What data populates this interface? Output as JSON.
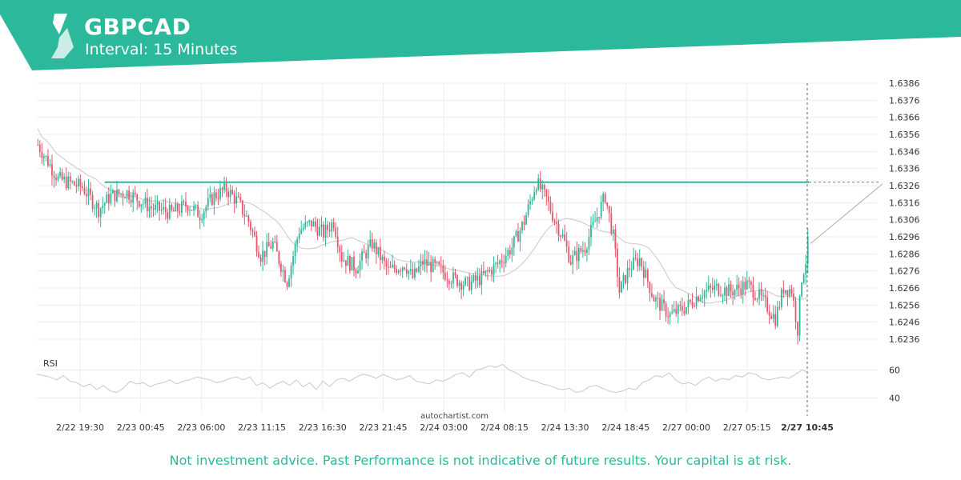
{
  "header": {
    "symbol": "GBPCAD",
    "interval": "Interval: 15 Minutes",
    "color": "#2cb99b"
  },
  "chart_data": {
    "type": "candlestick",
    "symbol": "GBPCAD",
    "y_ticks": [
      "1.6386",
      "1.6376",
      "1.6366",
      "1.6356",
      "1.6346",
      "1.6336",
      "1.6326",
      "1.6316",
      "1.6306",
      "1.6296",
      "1.6286",
      "1.6276",
      "1.6266",
      "1.6256",
      "1.6246",
      "1.6236"
    ],
    "ylim": [
      1.6232,
      1.6389
    ],
    "x_ticks": [
      "2/22 19:30",
      "2/23 00:45",
      "2/23 06:00",
      "2/23 11:15",
      "2/23 16:30",
      "2/23 21:45",
      "2/24 03:00",
      "2/24 08:15",
      "2/24 13:30",
      "2/24 18:45",
      "2/27 00:00",
      "2/27 05:15"
    ],
    "current_time_label": "2/27 10:45",
    "resistance_level": 1.6328,
    "projection": {
      "from": 1.6292,
      "to": 1.6327
    },
    "grid": true,
    "bullish_color": "#2cb99b",
    "bearish_color": "#e8566c",
    "price_path": [
      {
        "t": 0,
        "p": 1.635
      },
      {
        "t": 10,
        "p": 1.633
      },
      {
        "t": 22,
        "p": 1.6325
      },
      {
        "t": 30,
        "p": 1.6312
      },
      {
        "t": 36,
        "p": 1.632
      },
      {
        "t": 44,
        "p": 1.6322
      },
      {
        "t": 56,
        "p": 1.6313
      },
      {
        "t": 66,
        "p": 1.631
      },
      {
        "t": 74,
        "p": 1.6315
      },
      {
        "t": 80,
        "p": 1.6309
      },
      {
        "t": 87,
        "p": 1.632
      },
      {
        "t": 93,
        "p": 1.6324
      },
      {
        "t": 99,
        "p": 1.6316
      },
      {
        "t": 104,
        "p": 1.6305
      },
      {
        "t": 110,
        "p": 1.6285
      },
      {
        "t": 116,
        "p": 1.6292
      },
      {
        "t": 123,
        "p": 1.627
      },
      {
        "t": 129,
        "p": 1.63
      },
      {
        "t": 135,
        "p": 1.6304
      },
      {
        "t": 141,
        "p": 1.6298
      },
      {
        "t": 146,
        "p": 1.6305
      },
      {
        "t": 150,
        "p": 1.6284
      },
      {
        "t": 157,
        "p": 1.6278
      },
      {
        "t": 165,
        "p": 1.6292
      },
      {
        "t": 173,
        "p": 1.6276
      },
      {
        "t": 181,
        "p": 1.628
      },
      {
        "t": 185,
        "p": 1.6272
      },
      {
        "t": 190,
        "p": 1.6281
      },
      {
        "t": 198,
        "p": 1.6277
      },
      {
        "t": 204,
        "p": 1.6272
      },
      {
        "t": 212,
        "p": 1.6268
      },
      {
        "t": 219,
        "p": 1.6272
      },
      {
        "t": 227,
        "p": 1.628
      },
      {
        "t": 234,
        "p": 1.629
      },
      {
        "t": 240,
        "p": 1.6305
      },
      {
        "t": 246,
        "p": 1.6328
      },
      {
        "t": 251,
        "p": 1.6318
      },
      {
        "t": 255,
        "p": 1.6306
      },
      {
        "t": 259,
        "p": 1.6296
      },
      {
        "t": 263,
        "p": 1.6282
      },
      {
        "t": 270,
        "p": 1.629
      },
      {
        "t": 275,
        "p": 1.6305
      },
      {
        "t": 280,
        "p": 1.632
      },
      {
        "t": 284,
        "p": 1.6296
      },
      {
        "t": 287,
        "p": 1.6264
      },
      {
        "t": 292,
        "p": 1.6278
      },
      {
        "t": 297,
        "p": 1.6283
      },
      {
        "t": 304,
        "p": 1.626
      },
      {
        "t": 312,
        "p": 1.625
      },
      {
        "t": 320,
        "p": 1.6255
      },
      {
        "t": 327,
        "p": 1.6263
      },
      {
        "t": 335,
        "p": 1.6266
      },
      {
        "t": 342,
        "p": 1.6264
      },
      {
        "t": 350,
        "p": 1.6268
      },
      {
        "t": 356,
        "p": 1.6261
      },
      {
        "t": 360,
        "p": 1.6255
      },
      {
        "t": 364,
        "p": 1.6248
      },
      {
        "t": 368,
        "p": 1.6266
      },
      {
        "t": 372,
        "p": 1.6265
      },
      {
        "t": 375,
        "p": 1.6242
      },
      {
        "t": 377,
        "p": 1.6272
      },
      {
        "t": 379,
        "p": 1.6282
      },
      {
        "t": 380,
        "p": 1.6292
      }
    ]
  },
  "rsi": {
    "label": "RSI",
    "ticks": [
      "60",
      "40"
    ],
    "range": [
      30,
      70
    ],
    "values": [
      57,
      56,
      55,
      53,
      56,
      52,
      51,
      48,
      50,
      46,
      49,
      45,
      44,
      47,
      52,
      50,
      51,
      48,
      50,
      51,
      53,
      50,
      52,
      53,
      55,
      54,
      53,
      51,
      52,
      54,
      55,
      53,
      55,
      49,
      51,
      47,
      50,
      52,
      49,
      53,
      48,
      51,
      46,
      52,
      48,
      53,
      54,
      52,
      55,
      57,
      56,
      54,
      57,
      55,
      53,
      54,
      56,
      52,
      51,
      50,
      53,
      52,
      54,
      57,
      58,
      55,
      60,
      61,
      63,
      62,
      64,
      60,
      58,
      55,
      53,
      52,
      50,
      49,
      47,
      46,
      47,
      44,
      45,
      48,
      49,
      47,
      45,
      44,
      45,
      47,
      46,
      51,
      53,
      56,
      55,
      58,
      53,
      50,
      51,
      49,
      53,
      55,
      52,
      54,
      53,
      56,
      55,
      58,
      57,
      54,
      53,
      54,
      55,
      54,
      57,
      60,
      58
    ]
  },
  "watermark": "autochartist.com",
  "disclaimer": "Not investment advice. Past Performance is not indicative of future results. Your capital is at risk."
}
